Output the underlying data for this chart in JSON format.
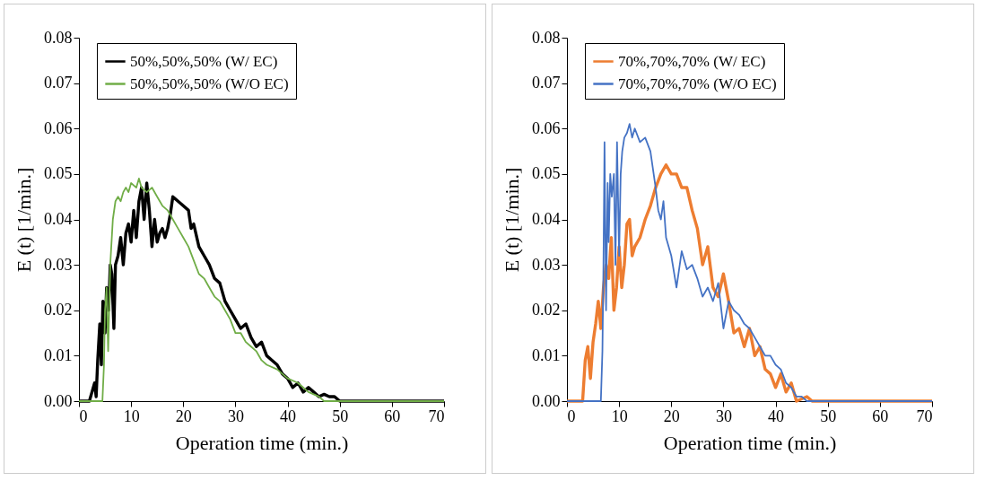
{
  "chart_data": [
    {
      "type": "line",
      "xlabel": "Operation time (min.)",
      "ylabel": "E (t) [1/min.]",
      "legend": "top",
      "xlim": [
        0,
        70
      ],
      "xticks": [
        0,
        10,
        20,
        30,
        40,
        50,
        60,
        70
      ],
      "ylim": [
        0,
        0.08
      ],
      "yticks": [
        {
          "value": 0,
          "label": "0.00"
        },
        {
          "value": 0.01,
          "label": "0.01"
        },
        {
          "value": 0.02,
          "label": "0.02"
        },
        {
          "value": 0.03,
          "label": "0.03"
        },
        {
          "value": 0.04,
          "label": "0.04"
        },
        {
          "value": 0.05,
          "label": "0.05"
        },
        {
          "value": 0.06,
          "label": "0.06"
        },
        {
          "value": 0.07,
          "label": "0.07"
        },
        {
          "value": 0.08,
          "label": "0.08"
        }
      ],
      "grid": false,
      "series": [
        {
          "name": "50%,50%,50%  (W/ EC)",
          "color": "#000000",
          "x": [
            0,
            2,
            2.5,
            3,
            3.3,
            3.6,
            4,
            4.3,
            4.6,
            5,
            5.3,
            5.7,
            6,
            6.3,
            6.7,
            7,
            7.5,
            8,
            8.5,
            9,
            9.5,
            10,
            10.5,
            11,
            11.5,
            12,
            12.5,
            13,
            13.5,
            14,
            14.5,
            15,
            15.5,
            16,
            16.5,
            17,
            17.5,
            18,
            19,
            20,
            21,
            21.5,
            22,
            23,
            24,
            25,
            26,
            27,
            28,
            29,
            30,
            31,
            32,
            33,
            34,
            35,
            36,
            37,
            38,
            39,
            40,
            41,
            42,
            43,
            44,
            45,
            46,
            47,
            48,
            49,
            50,
            70
          ],
          "values": [
            0,
            0,
            0.002,
            0.004,
            0.001,
            0.009,
            0.017,
            0.008,
            0.022,
            0.015,
            0.025,
            0.02,
            0.03,
            0.028,
            0.016,
            0.03,
            0.032,
            0.036,
            0.03,
            0.037,
            0.039,
            0.035,
            0.042,
            0.036,
            0.044,
            0.047,
            0.04,
            0.048,
            0.042,
            0.034,
            0.04,
            0.035,
            0.037,
            0.038,
            0.036,
            0.038,
            0.041,
            0.045,
            0.044,
            0.043,
            0.042,
            0.038,
            0.039,
            0.034,
            0.032,
            0.03,
            0.027,
            0.026,
            0.022,
            0.02,
            0.018,
            0.016,
            0.017,
            0.014,
            0.012,
            0.013,
            0.01,
            0.009,
            0.008,
            0.006,
            0.005,
            0.003,
            0.004,
            0.002,
            0.003,
            0.002,
            0.001,
            0.0015,
            0.001,
            0.001,
            0,
            0
          ]
        },
        {
          "name": "50%,50%,50% (W/O EC)",
          "color": "#70ad47",
          "x": [
            0,
            4.5,
            4.8,
            5,
            5.3,
            5.6,
            6,
            6.5,
            7,
            7.5,
            8,
            8.5,
            9,
            9.5,
            10,
            11,
            11.5,
            12,
            13,
            14,
            15,
            16,
            17,
            18,
            19,
            20,
            21,
            22,
            23,
            24,
            25,
            26,
            27,
            28,
            29,
            30,
            31,
            32,
            33,
            34,
            35,
            36,
            38,
            40,
            42,
            44,
            46,
            47,
            70
          ],
          "values": [
            0,
            0,
            0.008,
            0.02,
            0.025,
            0.011,
            0.03,
            0.04,
            0.044,
            0.045,
            0.044,
            0.046,
            0.047,
            0.046,
            0.048,
            0.047,
            0.049,
            0.047,
            0.046,
            0.047,
            0.045,
            0.043,
            0.042,
            0.04,
            0.038,
            0.036,
            0.034,
            0.031,
            0.028,
            0.027,
            0.025,
            0.023,
            0.022,
            0.02,
            0.018,
            0.015,
            0.015,
            0.013,
            0.012,
            0.011,
            0.009,
            0.008,
            0.007,
            0.005,
            0.004,
            0.002,
            0.001,
            0,
            0
          ]
        }
      ]
    },
    {
      "type": "line",
      "xlabel": "Operation time (min.)",
      "ylabel": "E (t) [1/min.]",
      "legend": "top",
      "xlim": [
        0,
        70
      ],
      "xticks": [
        0,
        10,
        20,
        30,
        40,
        50,
        60,
        70
      ],
      "ylim": [
        0,
        0.08
      ],
      "yticks": [
        {
          "value": 0,
          "label": "0.00"
        },
        {
          "value": 0.01,
          "label": "0.01"
        },
        {
          "value": 0.02,
          "label": "0.02"
        },
        {
          "value": 0.03,
          "label": "0.03"
        },
        {
          "value": 0.04,
          "label": "0.04"
        },
        {
          "value": 0.05,
          "label": "0.05"
        },
        {
          "value": 0.06,
          "label": "0.06"
        },
        {
          "value": 0.07,
          "label": "0.07"
        },
        {
          "value": 0.08,
          "label": "0.08"
        }
      ],
      "grid": false,
      "series": [
        {
          "name": "70%,70%,70%  (W/ EC)",
          "color": "#ed7d31",
          "x": [
            0,
            3,
            3.5,
            4,
            4.5,
            5,
            5.5,
            6,
            6.5,
            7,
            7.5,
            8,
            8.5,
            9,
            9.5,
            10,
            10.5,
            11,
            11.5,
            12,
            12.5,
            13,
            14,
            15,
            16,
            17,
            18,
            19,
            20,
            21,
            22,
            23,
            24,
            25,
            26,
            27,
            28,
            29,
            30,
            31,
            32,
            33,
            34,
            35,
            36,
            37,
            38,
            39,
            40,
            41,
            42,
            43,
            44,
            46,
            47,
            70
          ],
          "values": [
            0,
            0,
            0.009,
            0.012,
            0.005,
            0.013,
            0.017,
            0.022,
            0.016,
            0.025,
            0.03,
            0.027,
            0.036,
            0.02,
            0.025,
            0.034,
            0.025,
            0.03,
            0.039,
            0.04,
            0.032,
            0.034,
            0.036,
            0.04,
            0.043,
            0.047,
            0.05,
            0.052,
            0.05,
            0.05,
            0.047,
            0.047,
            0.042,
            0.038,
            0.03,
            0.034,
            0.025,
            0.023,
            0.028,
            0.022,
            0.015,
            0.016,
            0.012,
            0.016,
            0.01,
            0.012,
            0.007,
            0.006,
            0.003,
            0.006,
            0.002,
            0.004,
            0,
            0.001,
            0,
            0
          ]
        },
        {
          "name": "70%,70%,70% (W/O EC)",
          "color": "#4472c4",
          "x": [
            0,
            6.5,
            6.8,
            7,
            7.2,
            7.5,
            7.8,
            8,
            8.3,
            8.6,
            9,
            9.3,
            9.6,
            10,
            10.3,
            10.6,
            11,
            11.5,
            12,
            12.5,
            13,
            14,
            15,
            16,
            16.5,
            17,
            17.5,
            18,
            18.5,
            19,
            20,
            21,
            22,
            23,
            24,
            25,
            26,
            27,
            28,
            29,
            30,
            31,
            32,
            33,
            34,
            35,
            36,
            37,
            38,
            39,
            40,
            41,
            42,
            43,
            44,
            45,
            46,
            70
          ],
          "values": [
            0,
            0,
            0.011,
            0.03,
            0.057,
            0.02,
            0.048,
            0.035,
            0.05,
            0.045,
            0.05,
            0.03,
            0.057,
            0.032,
            0.05,
            0.055,
            0.058,
            0.059,
            0.061,
            0.058,
            0.06,
            0.057,
            0.058,
            0.055,
            0.051,
            0.047,
            0.042,
            0.04,
            0.044,
            0.036,
            0.032,
            0.025,
            0.033,
            0.029,
            0.03,
            0.027,
            0.023,
            0.025,
            0.022,
            0.026,
            0.016,
            0.022,
            0.02,
            0.019,
            0.017,
            0.016,
            0.014,
            0.012,
            0.01,
            0.01,
            0.008,
            0.007,
            0.004,
            0.003,
            0.001,
            0.001,
            0,
            0
          ]
        }
      ]
    }
  ]
}
